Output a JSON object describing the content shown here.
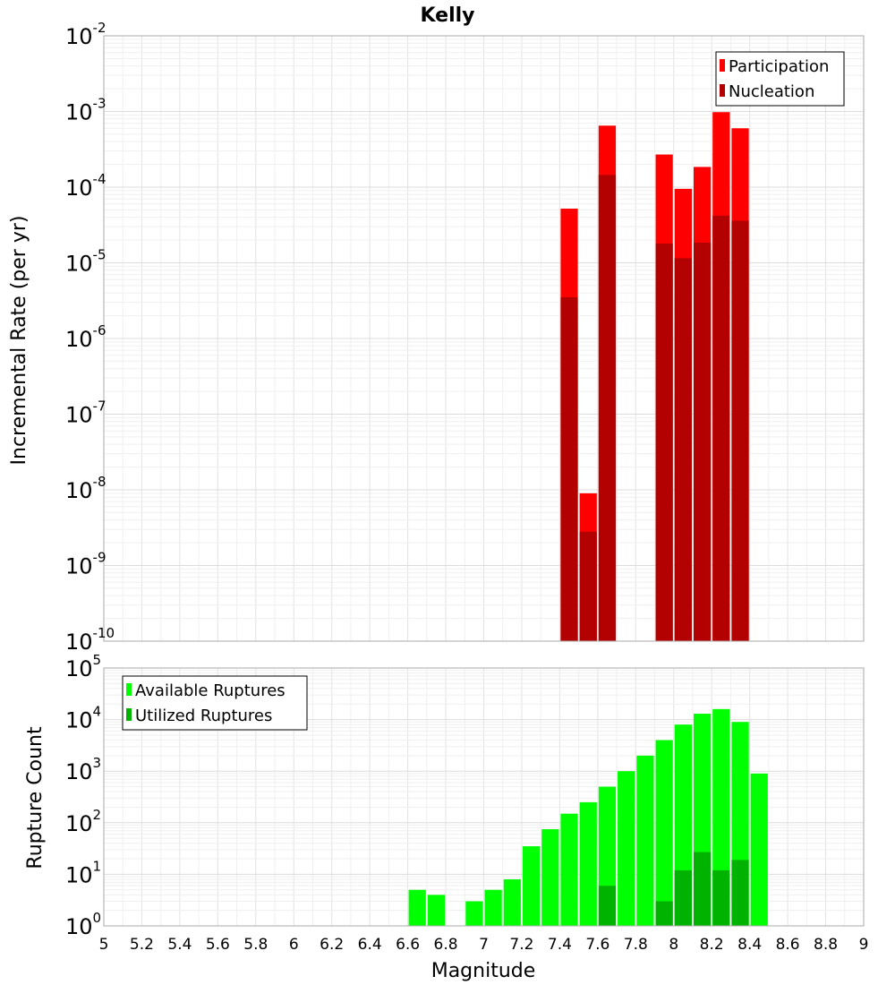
{
  "chart_data": [
    {
      "type": "bar",
      "title": "Kelly",
      "xlabel": "",
      "ylabel": "Incremental Rate (per yr)",
      "y_scale": "log",
      "ylim": [
        1e-10,
        0.01
      ],
      "xlim": [
        5,
        9
      ],
      "bin_width": 0.1,
      "yticks": [
        {
          "base": "10",
          "exp": "-10"
        },
        {
          "base": "10",
          "exp": "-9"
        },
        {
          "base": "10",
          "exp": "-8"
        },
        {
          "base": "10",
          "exp": "-7"
        },
        {
          "base": "10",
          "exp": "-6"
        },
        {
          "base": "10",
          "exp": "-5"
        },
        {
          "base": "10",
          "exp": "-4"
        },
        {
          "base": "10",
          "exp": "-3"
        },
        {
          "base": "10",
          "exp": "-2"
        }
      ],
      "legend_position": "top-right",
      "series": [
        {
          "name": "Participation",
          "color": "#ff0000",
          "x": [
            7.45,
            7.55,
            7.65,
            7.95,
            8.05,
            8.15,
            8.25,
            8.35
          ],
          "values": [
            5.2e-05,
            9e-09,
            0.00065,
            0.00027,
            9.5e-05,
            0.000185,
            0.00098,
            0.0006
          ]
        },
        {
          "name": "Nucleation",
          "color": "#b30000",
          "x": [
            7.45,
            7.55,
            7.65,
            7.95,
            8.05,
            8.15,
            8.25,
            8.35
          ],
          "values": [
            3.5e-06,
            2.8e-09,
            0.000145,
            1.8e-05,
            1.15e-05,
            1.85e-05,
            4.2e-05,
            3.6e-05
          ]
        }
      ]
    },
    {
      "type": "bar",
      "xlabel": "Magnitude",
      "ylabel": "Rupture Count",
      "y_scale": "log",
      "ylim": [
        1,
        100000
      ],
      "xlim": [
        5,
        9
      ],
      "bin_width": 0.1,
      "yticks": [
        {
          "base": "10",
          "exp": "0"
        },
        {
          "base": "10",
          "exp": "1"
        },
        {
          "base": "10",
          "exp": "2"
        },
        {
          "base": "10",
          "exp": "3"
        },
        {
          "base": "10",
          "exp": "4"
        },
        {
          "base": "10",
          "exp": "5"
        }
      ],
      "xticks": [
        "5",
        "5.2",
        "5.4",
        "5.6",
        "5.8",
        "6",
        "6.2",
        "6.4",
        "6.6",
        "6.8",
        "7",
        "7.2",
        "7.4",
        "7.6",
        "7.8",
        "8",
        "8.2",
        "8.4",
        "8.6",
        "8.8",
        "9"
      ],
      "legend_position": "top-left",
      "series": [
        {
          "name": "Available Ruptures",
          "color": "#00ff00",
          "x": [
            6.65,
            6.75,
            6.95,
            7.05,
            7.15,
            7.25,
            7.35,
            7.45,
            7.55,
            7.65,
            7.75,
            7.85,
            7.95,
            8.05,
            8.15,
            8.25,
            8.35,
            8.45
          ],
          "values": [
            5,
            4,
            3,
            5,
            8,
            35,
            75,
            150,
            250,
            500,
            1000,
            2000,
            4000,
            8000,
            13000,
            16000,
            9000,
            900
          ]
        },
        {
          "name": "Utilized Ruptures",
          "color": "#00b300",
          "x": [
            7.45,
            7.55,
            7.65,
            7.95,
            8.05,
            8.15,
            8.25,
            8.35
          ],
          "values": [
            1,
            1,
            6,
            3,
            12,
            27,
            12,
            19
          ]
        }
      ]
    }
  ]
}
